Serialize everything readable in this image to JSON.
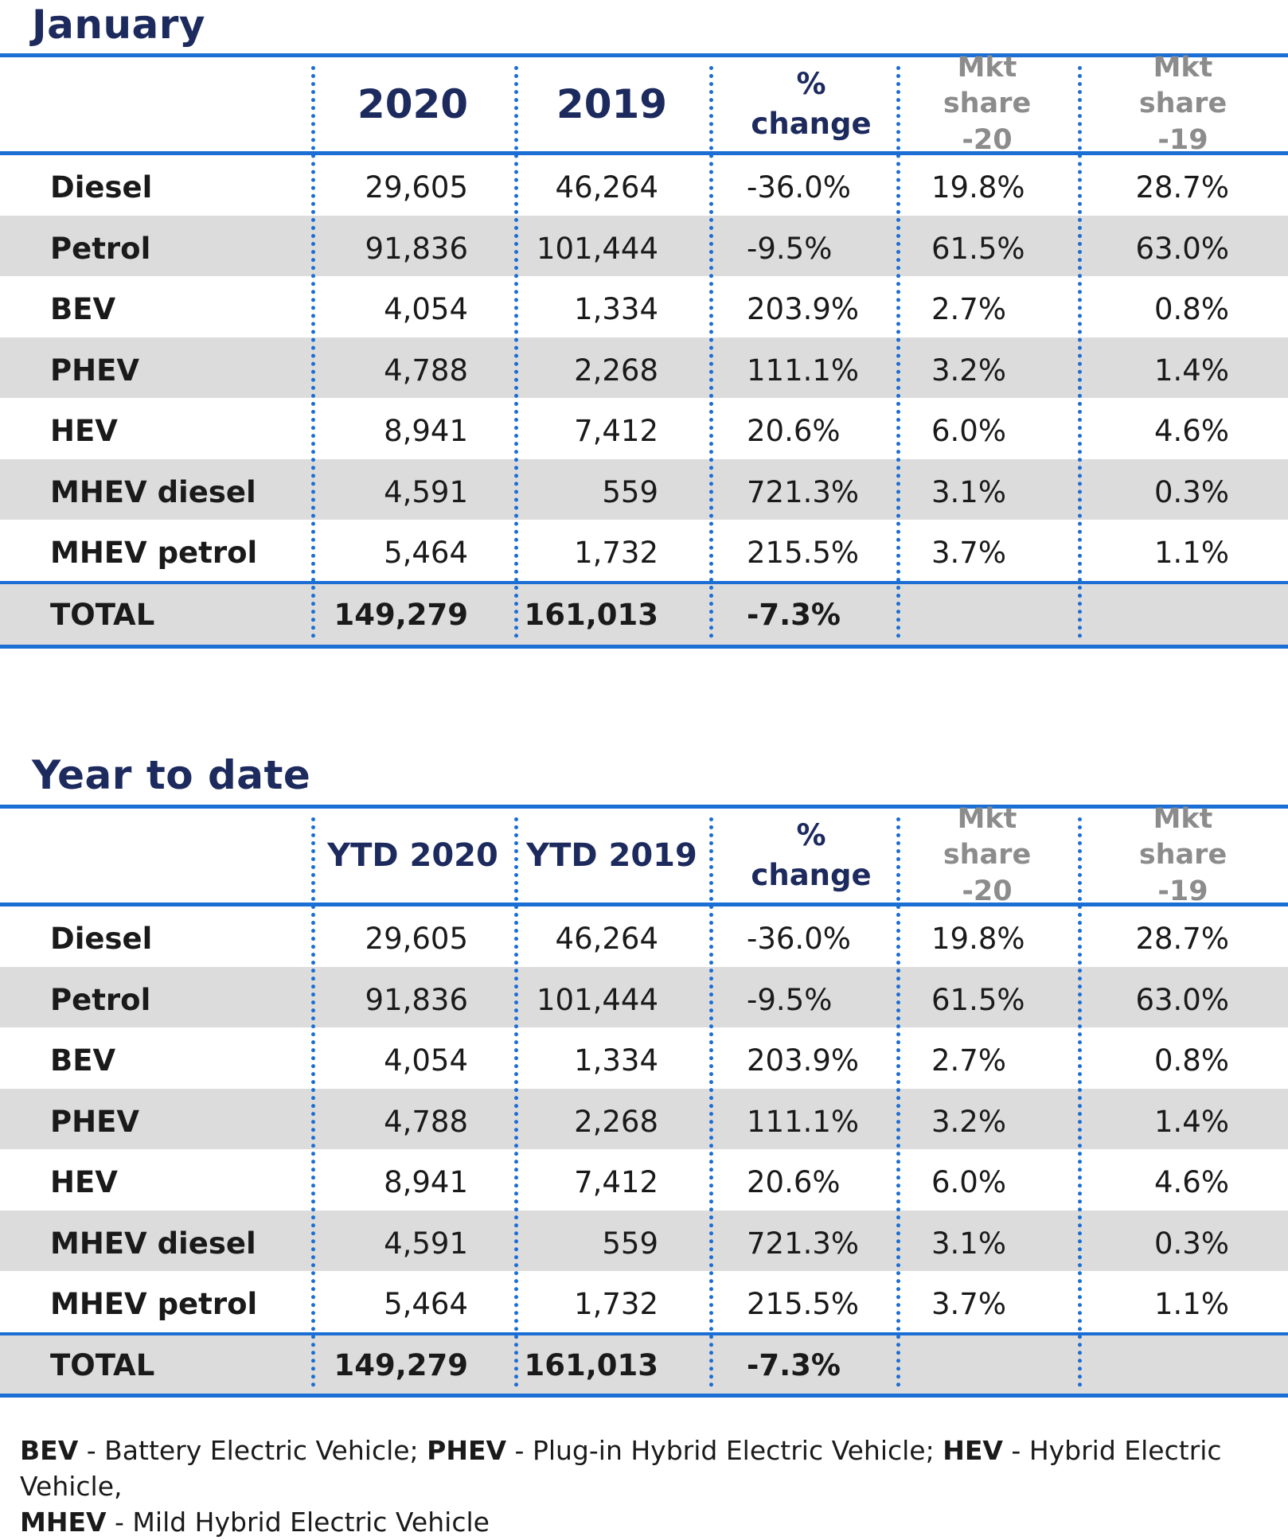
{
  "chart_data": [
    {
      "type": "table",
      "title": "January",
      "columns": [
        "2020",
        "2019",
        "% change",
        "Mkt share -20",
        "Mkt share -19"
      ],
      "rows": [
        {
          "label": "Diesel",
          "values": [
            "29,605",
            "46,264",
            "-36.0%",
            "19.8%",
            "28.7%"
          ]
        },
        {
          "label": "Petrol",
          "values": [
            "91,836",
            "101,444",
            "-9.5%",
            "61.5%",
            "63.0%"
          ]
        },
        {
          "label": "BEV",
          "values": [
            "4,054",
            "1,334",
            "203.9%",
            "2.7%",
            "0.8%"
          ]
        },
        {
          "label": "PHEV",
          "values": [
            "4,788",
            "2,268",
            "111.1%",
            "3.2%",
            "1.4%"
          ]
        },
        {
          "label": "HEV",
          "values": [
            "8,941",
            "7,412",
            "20.6%",
            "6.0%",
            "4.6%"
          ]
        },
        {
          "label": "MHEV diesel",
          "values": [
            "4,591",
            "559",
            "721.3%",
            "3.1%",
            "0.3%"
          ]
        },
        {
          "label": "MHEV petrol",
          "values": [
            "5,464",
            "1,732",
            "215.5%",
            "3.7%",
            "1.1%"
          ]
        }
      ],
      "total": {
        "label": "TOTAL",
        "values": [
          "149,279",
          "161,013",
          "-7.3%",
          "",
          ""
        ]
      }
    },
    {
      "type": "table",
      "title": "Year to date",
      "columns": [
        "YTD 2020",
        "YTD 2019",
        "% change",
        "Mkt share -20",
        "Mkt share -19"
      ],
      "rows": [
        {
          "label": "Diesel",
          "values": [
            "29,605",
            "46,264",
            "-36.0%",
            "19.8%",
            "28.7%"
          ]
        },
        {
          "label": "Petrol",
          "values": [
            "91,836",
            "101,444",
            "-9.5%",
            "61.5%",
            "63.0%"
          ]
        },
        {
          "label": "BEV",
          "values": [
            "4,054",
            "1,334",
            "203.9%",
            "2.7%",
            "0.8%"
          ]
        },
        {
          "label": "PHEV",
          "values": [
            "4,788",
            "2,268",
            "111.1%",
            "3.2%",
            "1.4%"
          ]
        },
        {
          "label": "HEV",
          "values": [
            "8,941",
            "7,412",
            "20.6%",
            "6.0%",
            "4.6%"
          ]
        },
        {
          "label": "MHEV diesel",
          "values": [
            "4,591",
            "559",
            "721.3%",
            "3.1%",
            "0.3%"
          ]
        },
        {
          "label": "MHEV petrol",
          "values": [
            "5,464",
            "1,732",
            "215.5%",
            "3.7%",
            "1.1%"
          ]
        }
      ],
      "total": {
        "label": "TOTAL",
        "values": [
          "149,279",
          "161,013",
          "-7.3%",
          "",
          ""
        ]
      }
    }
  ],
  "footnote": {
    "items": [
      {
        "abbr": "BEV",
        "text": " - Battery Electric Vehicle; "
      },
      {
        "abbr": "PHEV",
        "text": " - Plug-in Hybrid Electric Vehicle; "
      },
      {
        "abbr": "HEV",
        "text": " - Hybrid Electric Vehicle, "
      },
      {
        "abbr": "MHEV",
        "text": " - Mild Hybrid Electric Vehicle"
      }
    ]
  },
  "colors": {
    "accent": "#1b6ed4",
    "title": "#1c2a5e",
    "stripe": "#dcdcdc",
    "muted_header": "#8c8c8c"
  }
}
